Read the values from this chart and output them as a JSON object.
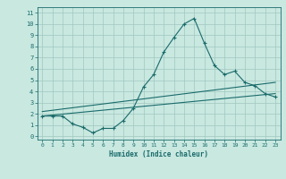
{
  "xlabel": "Humidex (Indice chaleur)",
  "ylabel": "",
  "background_color": "#c8e8e0",
  "grid_color": "#a0c8c0",
  "line_color": "#1a6b6b",
  "xlim": [
    -0.5,
    23.5
  ],
  "ylim": [
    -0.3,
    11.5
  ],
  "xticks": [
    0,
    1,
    2,
    3,
    4,
    5,
    6,
    7,
    8,
    9,
    10,
    11,
    12,
    13,
    14,
    15,
    16,
    17,
    18,
    19,
    20,
    21,
    22,
    23
  ],
  "yticks": [
    0,
    1,
    2,
    3,
    4,
    5,
    6,
    7,
    8,
    9,
    10,
    11
  ],
  "line1_x": [
    0,
    1,
    2,
    3,
    4,
    5,
    6,
    7,
    8,
    9,
    10,
    11,
    12,
    13,
    14,
    15,
    16,
    17,
    18,
    19,
    20,
    21,
    22,
    23
  ],
  "line1_y": [
    1.8,
    1.8,
    1.8,
    1.1,
    0.8,
    0.3,
    0.7,
    0.7,
    1.4,
    2.5,
    4.4,
    5.5,
    7.5,
    8.8,
    10.0,
    10.5,
    8.3,
    6.3,
    5.5,
    5.8,
    4.8,
    4.5,
    3.8,
    3.5
  ],
  "line2_x": [
    0,
    23
  ],
  "line2_y": [
    1.8,
    3.8
  ],
  "line3_x": [
    0,
    23
  ],
  "line3_y": [
    2.2,
    4.8
  ]
}
